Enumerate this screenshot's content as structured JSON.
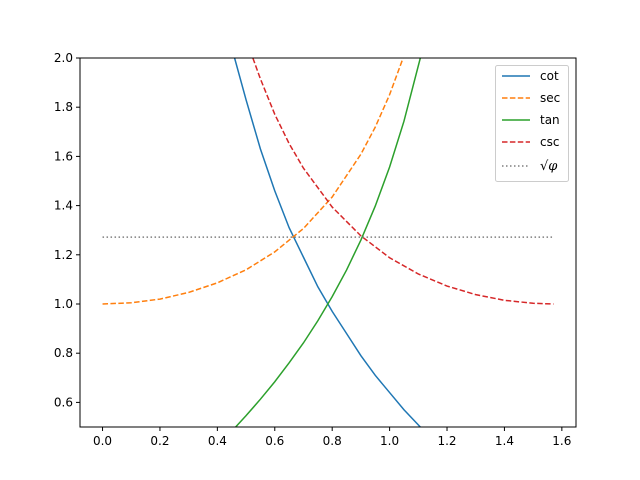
{
  "chart_data": {
    "type": "line",
    "xlim": [
      -0.0785,
      1.6493
    ],
    "ylim": [
      0.5,
      2.0
    ],
    "x_ticks": [
      0.0,
      0.2,
      0.4,
      0.6,
      0.8,
      1.0,
      1.2,
      1.4,
      1.6
    ],
    "x_tick_labels": [
      "0.0",
      "0.2",
      "0.4",
      "0.6",
      "0.8",
      "1.0",
      "1.2",
      "1.4",
      "1.6"
    ],
    "y_ticks": [
      0.6,
      0.8,
      1.0,
      1.2,
      1.4,
      1.6,
      1.8,
      2.0
    ],
    "y_tick_labels": [
      "0.6",
      "0.8",
      "1.0",
      "1.2",
      "1.4",
      "1.6",
      "1.8",
      "2.0"
    ],
    "grid": false,
    "legend_position": "upper right",
    "series": [
      {
        "name": "cot",
        "color": "#1f77b4",
        "dash": "solid",
        "x": [
          0.46,
          0.5,
          0.55,
          0.6,
          0.65,
          0.7,
          0.75,
          0.785,
          0.8,
          0.85,
          0.9,
          0.95,
          1.0,
          1.05,
          1.107
        ],
        "y": [
          2.0,
          1.83,
          1.63,
          1.46,
          1.31,
          1.19,
          1.07,
          1.0,
          0.97,
          0.88,
          0.79,
          0.71,
          0.64,
          0.57,
          0.5
        ]
      },
      {
        "name": "sec",
        "color": "#ff7f0e",
        "dash": "dashed",
        "x": [
          0.0,
          0.1,
          0.2,
          0.3,
          0.4,
          0.5,
          0.6,
          0.7,
          0.8,
          0.9,
          0.95,
          1.0,
          1.047
        ],
        "y": [
          1.0,
          1.005,
          1.02,
          1.047,
          1.086,
          1.139,
          1.212,
          1.307,
          1.435,
          1.609,
          1.719,
          1.851,
          2.0
        ]
      },
      {
        "name": "tan",
        "color": "#2ca02c",
        "dash": "solid",
        "x": [
          0.4636,
          0.5,
          0.55,
          0.6,
          0.65,
          0.7,
          0.75,
          0.8,
          0.85,
          0.9,
          0.95,
          1.0,
          1.05,
          1.107
        ],
        "y": [
          0.5,
          0.546,
          0.613,
          0.684,
          0.761,
          0.842,
          0.932,
          1.03,
          1.138,
          1.26,
          1.398,
          1.557,
          1.743,
          2.0
        ]
      },
      {
        "name": "csc",
        "color": "#d62728",
        "dash": "dashed",
        "x": [
          0.5236,
          0.55,
          0.6,
          0.65,
          0.7,
          0.8,
          0.9,
          1.0,
          1.1,
          1.2,
          1.3,
          1.4,
          1.5,
          1.5708
        ],
        "y": [
          2.0,
          1.915,
          1.771,
          1.652,
          1.552,
          1.394,
          1.277,
          1.188,
          1.122,
          1.073,
          1.038,
          1.015,
          1.003,
          1.0
        ]
      },
      {
        "name": "√φ",
        "color": "#7f7f7f",
        "dash": "dotted",
        "x": [
          0.0,
          1.5708
        ],
        "y": [
          1.272,
          1.272
        ]
      }
    ]
  }
}
